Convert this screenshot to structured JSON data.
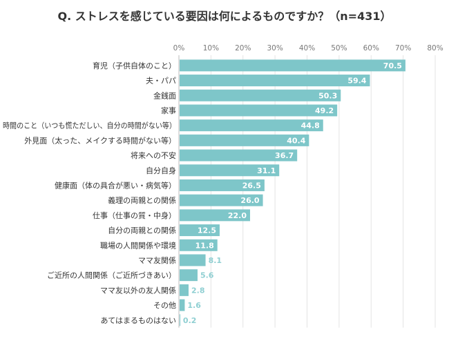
{
  "chart_data": {
    "type": "bar",
    "orientation": "horizontal",
    "title": "Q. ストレスを感じている要因は何によるものですか？（n=431）",
    "xlabel": "",
    "ylabel": "",
    "xlim": [
      0,
      80
    ],
    "x_ticks": [
      "0%",
      "10%",
      "20%",
      "30%",
      "40%",
      "50%",
      "60%",
      "70%",
      "80%"
    ],
    "grid": true,
    "legend": "none",
    "bar_color": "#7ec6c9",
    "label_inside_color": "#ffffff",
    "label_outside_color": "#8fcfd2",
    "categories": [
      "育児（子供自体のこと）",
      "夫・パパ",
      "金銭面",
      "家事",
      "時間のこと（いつも慌ただしい、自分の時間がない等）",
      "外見面（太った、メイクする時間がない等）",
      "将来への不安",
      "自分自身",
      "健康面（体の具合が悪い・病気等）",
      "義理の両親との関係",
      "仕事（仕事の質・中身）",
      "自分の両親との関係",
      "職場の人間関係や環境",
      "ママ友関係",
      "ご近所の人間関係（ご近所づきあい）",
      "ママ友以外の友人関係",
      "その他",
      "あてはまるものはない"
    ],
    "values": [
      70.5,
      59.4,
      50.3,
      49.2,
      44.8,
      40.4,
      36.7,
      31.1,
      26.5,
      26.0,
      22.0,
      12.5,
      11.8,
      8.1,
      5.6,
      2.8,
      1.6,
      0.2
    ],
    "value_labels": [
      "70.5",
      "59.4",
      "50.3",
      "49.2",
      "44.8",
      "40.4",
      "36.7",
      "31.1",
      "26.5",
      "26.0",
      "22.0",
      "12.5",
      "11.8",
      "8.1",
      "5.6",
      "2.8",
      "1.6",
      "0.2"
    ]
  }
}
